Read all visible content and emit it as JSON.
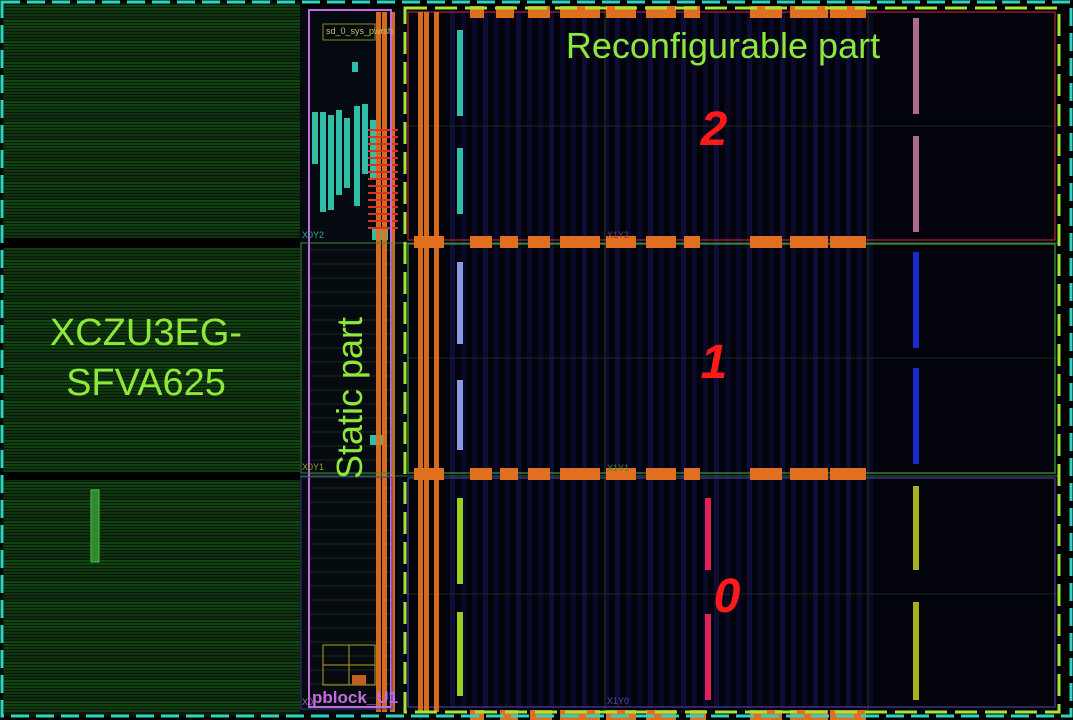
{
  "device": {
    "line1": "XCZU3EG-",
    "line2": "SFVA625"
  },
  "static_part": {
    "label": "Static part",
    "pblock_label": "pblock_U1"
  },
  "reconfigurable_part": {
    "label": "Reconfigurable part"
  },
  "regions": [
    {
      "number": "2"
    },
    {
      "number": "1"
    },
    {
      "number": "0"
    }
  ],
  "clock_regions": {
    "x0y2": "X0Y2",
    "x0y1": "X0Y1",
    "x0y0": "X0",
    "x1y2": "X1Y2",
    "x1y1": "X1Y1",
    "x1y0": "X1Y0",
    "top_small": "sd_0_sys_pwrsh"
  },
  "colors": {
    "device_outline": "#2dd4bf",
    "reconfig_outline": "#a3e635",
    "static_outline": "#c06ce0",
    "region2_outline": "#b91c3c",
    "region1_outline": "#3f9b3f",
    "region0_outline": "#4a3a9a",
    "label_green": "#8ee83a",
    "region_number": "#ff1a1a",
    "route_orange": "#e07020"
  }
}
